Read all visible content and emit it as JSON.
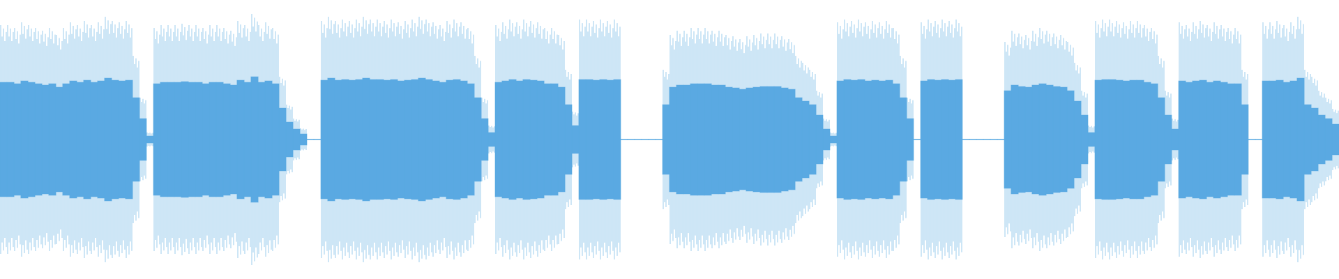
{
  "chart_data": {
    "type": "waveform",
    "color": "#5aa9e2",
    "ylim": [
      -1,
      1
    ],
    "values": [
      0.82,
      0.82,
      0.8,
      0.84,
      0.82,
      0.8,
      0.78,
      0.8,
      0.75,
      0.8,
      0.84,
      0.82,
      0.85,
      0.82,
      0.84,
      0.88,
      0.85,
      0.84,
      0.85,
      0.6,
      0.3,
      0.05,
      0.8,
      0.82,
      0.82,
      0.82,
      0.83,
      0.82,
      0.82,
      0.8,
      0.82,
      0.82,
      0.8,
      0.78,
      0.85,
      0.82,
      0.9,
      0.82,
      0.84,
      0.8,
      0.45,
      0.25,
      0.15,
      0.08,
      0,
      0,
      0.85,
      0.88,
      0.85,
      0.86,
      0.85,
      0.86,
      0.88,
      0.86,
      0.86,
      0.85,
      0.86,
      0.84,
      0.85,
      0.86,
      0.88,
      0.86,
      0.84,
      0.82,
      0.85,
      0.86,
      0.84,
      0.8,
      0.6,
      0.3,
      0.1,
      0.82,
      0.84,
      0.86,
      0.84,
      0.86,
      0.85,
      0.84,
      0.8,
      0.8,
      0.75,
      0.5,
      0.2,
      0.86,
      0.86,
      0.85,
      0.86,
      0.85,
      0.86,
      0,
      0,
      0,
      0,
      0,
      0,
      0.5,
      0.75,
      0.78,
      0.78,
      0.8,
      0.8,
      0.8,
      0.78,
      0.78,
      0.75,
      0.74,
      0.72,
      0.74,
      0.75,
      0.76,
      0.76,
      0.76,
      0.74,
      0.72,
      0.6,
      0.55,
      0.5,
      0.35,
      0.15,
      0.05,
      0.84,
      0.86,
      0.85,
      0.86,
      0.84,
      0.85,
      0.84,
      0.85,
      0.8,
      0.6,
      0.3,
      0,
      0.84,
      0.86,
      0.85,
      0.86,
      0.85,
      0.86,
      0,
      0,
      0,
      0,
      0,
      0,
      0.7,
      0.78,
      0.76,
      0.75,
      0.78,
      0.8,
      0.78,
      0.76,
      0.75,
      0.7,
      0.55,
      0.35,
      0.1,
      0.85,
      0.86,
      0.86,
      0.85,
      0.84,
      0.85,
      0.85,
      0.82,
      0.8,
      0.6,
      0.35,
      0.15,
      0.84,
      0.82,
      0.84,
      0.85,
      0.82,
      0.84,
      0.82,
      0.8,
      0.8,
      0.5,
      0,
      0,
      0.84,
      0.84,
      0.85,
      0.82,
      0.84,
      0.88,
      0.5,
      0.45,
      0.35,
      0.3,
      0.22
    ]
  }
}
